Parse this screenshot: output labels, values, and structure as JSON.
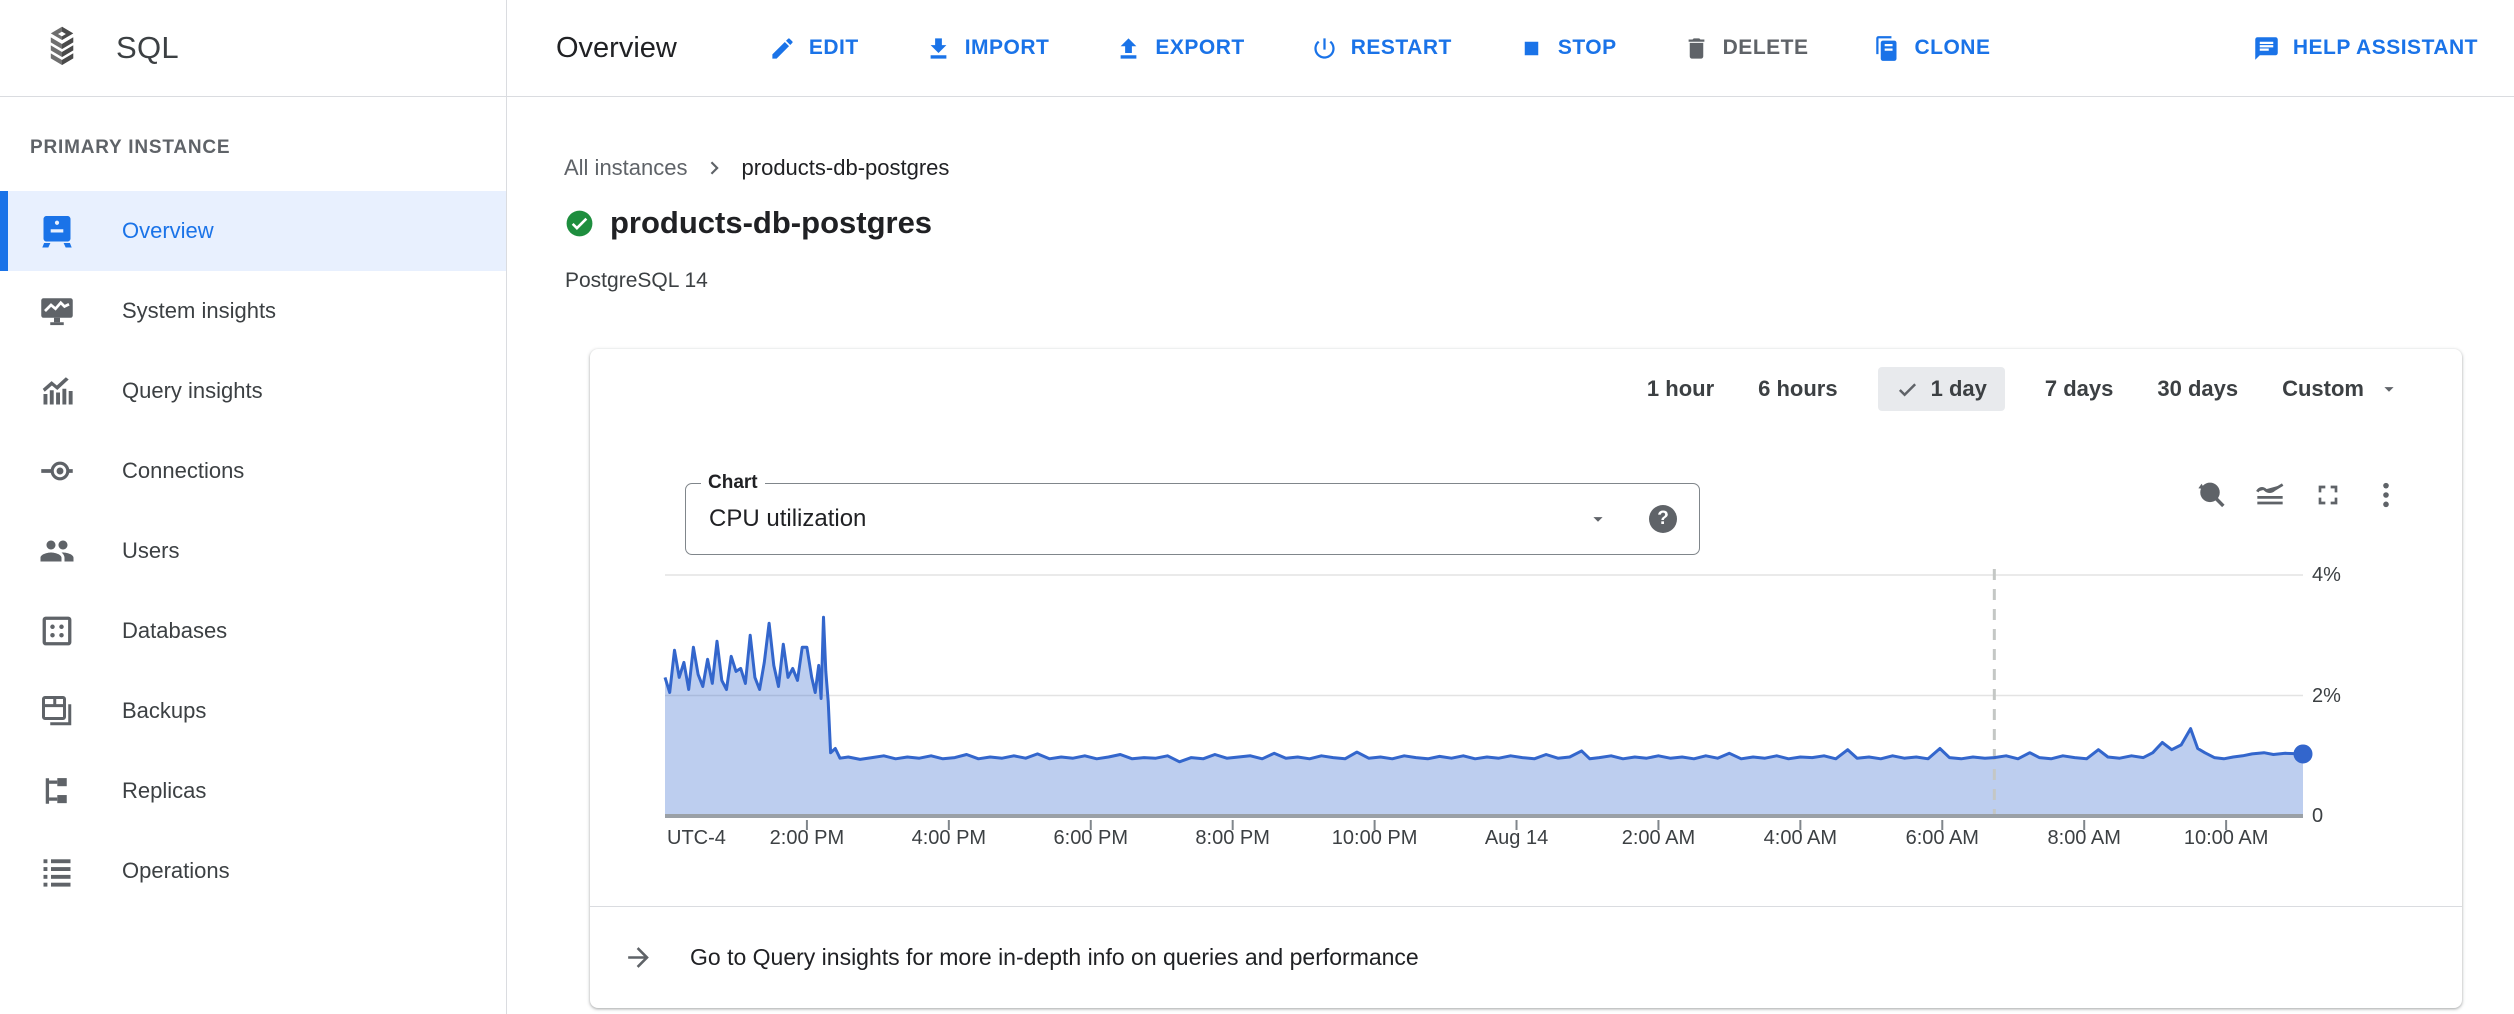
{
  "app": {
    "product_name": "SQL"
  },
  "header": {
    "page_title": "Overview",
    "actions": [
      {
        "label": "EDIT",
        "icon": "edit-pencil-icon"
      },
      {
        "label": "IMPORT",
        "icon": "import-download-icon"
      },
      {
        "label": "EXPORT",
        "icon": "export-upload-icon"
      },
      {
        "label": "RESTART",
        "icon": "restart-power-icon"
      },
      {
        "label": "STOP",
        "icon": "stop-square-icon"
      },
      {
        "label": "DELETE",
        "icon": "delete-trash-icon"
      },
      {
        "label": "CLONE",
        "icon": "clone-copy-icon"
      },
      {
        "label": "HELP ASSISTANT",
        "icon": "help-assistant-chat-icon"
      }
    ]
  },
  "sidebar": {
    "section_label": "PRIMARY INSTANCE",
    "items": [
      {
        "label": "Overview",
        "icon": "instance-overview-icon",
        "selected": true
      },
      {
        "label": "System insights",
        "icon": "system-insights-icon",
        "selected": false
      },
      {
        "label": "Query insights",
        "icon": "query-insights-icon",
        "selected": false
      },
      {
        "label": "Connections",
        "icon": "connections-icon",
        "selected": false
      },
      {
        "label": "Users",
        "icon": "users-icon",
        "selected": false
      },
      {
        "label": "Databases",
        "icon": "databases-icon",
        "selected": false
      },
      {
        "label": "Backups",
        "icon": "backups-icon",
        "selected": false
      },
      {
        "label": "Replicas",
        "icon": "replicas-icon",
        "selected": false
      },
      {
        "label": "Operations",
        "icon": "operations-icon",
        "selected": false
      }
    ]
  },
  "page": {
    "breadcrumb": {
      "parent": "All instances",
      "current": "products-db-postgres"
    },
    "instance_name": "products-db-postgres",
    "status": "running",
    "version": "PostgreSQL 14"
  },
  "card": {
    "time_ranges": [
      "1 hour",
      "6 hours",
      "1 day",
      "7 days",
      "30 days",
      "Custom"
    ],
    "selected_range": "1 day",
    "chart_select": {
      "label": "Chart",
      "value": "CPU utilization",
      "help_glyph": "?"
    },
    "footer_text": "Go to Query insights for more in-depth info on queries and performance"
  },
  "chart_data": {
    "type": "area",
    "title": "CPU utilization",
    "unit": "%",
    "legend": "none",
    "grid": true,
    "colors": {
      "line": "#3366cc",
      "area_fill": "#3366cc",
      "area_opacity": 0.32,
      "marker": "#c4c7c5",
      "axis": "#9aa0a6",
      "gridline": "#e3e3e3",
      "tick": "#80868b"
    },
    "y_axis": {
      "max": 4.33,
      "ticks": [
        {
          "value": 0,
          "label": "0"
        },
        {
          "value": 2,
          "label": "2%"
        },
        {
          "value": 4,
          "label": "4%"
        }
      ]
    },
    "x_axis": {
      "timezone_label": "UTC-4",
      "total_minutes": 1385,
      "start": "12:00 PM Aug 13",
      "end": "11:05 AM Aug 14",
      "ticks": [
        {
          "t": 120,
          "label": "2:00 PM"
        },
        {
          "t": 240,
          "label": "4:00 PM"
        },
        {
          "t": 360,
          "label": "6:00 PM"
        },
        {
          "t": 480,
          "label": "8:00 PM"
        },
        {
          "t": 600,
          "label": "10:00 PM"
        },
        {
          "t": 720,
          "label": "Aug 14"
        },
        {
          "t": 840,
          "label": "2:00 AM"
        },
        {
          "t": 960,
          "label": "4:00 AM"
        },
        {
          "t": 1080,
          "label": "6:00 AM"
        },
        {
          "t": 1200,
          "label": "8:00 AM"
        },
        {
          "t": 1320,
          "label": "10:00 AM"
        }
      ]
    },
    "now_marker_t": 1124,
    "series": [
      {
        "name": "CPU utilization",
        "points": [
          [
            0,
            2.3
          ],
          [
            4,
            2.05
          ],
          [
            8,
            2.75
          ],
          [
            12,
            2.3
          ],
          [
            16,
            2.55
          ],
          [
            20,
            2.1
          ],
          [
            24,
            2.8
          ],
          [
            28,
            2.35
          ],
          [
            32,
            2.15
          ],
          [
            36,
            2.6
          ],
          [
            40,
            2.2
          ],
          [
            44,
            2.9
          ],
          [
            48,
            2.25
          ],
          [
            52,
            2.1
          ],
          [
            56,
            2.65
          ],
          [
            60,
            2.4
          ],
          [
            64,
            2.45
          ],
          [
            68,
            2.2
          ],
          [
            72,
            3.0
          ],
          [
            76,
            2.3
          ],
          [
            80,
            2.1
          ],
          [
            84,
            2.55
          ],
          [
            88,
            3.2
          ],
          [
            92,
            2.5
          ],
          [
            96,
            2.15
          ],
          [
            100,
            2.85
          ],
          [
            104,
            2.3
          ],
          [
            108,
            2.45
          ],
          [
            112,
            2.25
          ],
          [
            116,
            2.8
          ],
          [
            120,
            2.8
          ],
          [
            124,
            2.3
          ],
          [
            127,
            2.05
          ],
          [
            130,
            2.5
          ],
          [
            132,
            1.95
          ],
          [
            134,
            3.3
          ],
          [
            136,
            2.4
          ],
          [
            138,
            1.9
          ],
          [
            140,
            1.05
          ],
          [
            144,
            1.12
          ],
          [
            148,
            0.96
          ],
          [
            155,
            0.98
          ],
          [
            165,
            0.94
          ],
          [
            175,
            0.97
          ],
          [
            185,
            1.0
          ],
          [
            195,
            0.95
          ],
          [
            205,
            0.98
          ],
          [
            215,
            0.96
          ],
          [
            225,
            1.0
          ],
          [
            235,
            0.95
          ],
          [
            245,
            0.97
          ],
          [
            255,
            1.02
          ],
          [
            265,
            0.95
          ],
          [
            275,
            0.98
          ],
          [
            285,
            0.96
          ],
          [
            295,
            1.0
          ],
          [
            305,
            0.96
          ],
          [
            315,
            1.03
          ],
          [
            325,
            0.95
          ],
          [
            335,
            0.98
          ],
          [
            345,
            0.96
          ],
          [
            355,
            1.0
          ],
          [
            365,
            0.95
          ],
          [
            375,
            0.98
          ],
          [
            385,
            1.02
          ],
          [
            395,
            0.95
          ],
          [
            405,
            0.97
          ],
          [
            415,
            0.96
          ],
          [
            425,
            1.0
          ],
          [
            435,
            0.9
          ],
          [
            445,
            0.97
          ],
          [
            455,
            0.95
          ],
          [
            465,
            1.02
          ],
          [
            475,
            0.96
          ],
          [
            485,
            0.98
          ],
          [
            495,
            1.0
          ],
          [
            505,
            0.95
          ],
          [
            515,
            1.04
          ],
          [
            525,
            0.96
          ],
          [
            535,
            0.98
          ],
          [
            545,
            0.95
          ],
          [
            555,
            1.0
          ],
          [
            565,
            0.97
          ],
          [
            575,
            0.95
          ],
          [
            585,
            1.06
          ],
          [
            595,
            0.96
          ],
          [
            605,
            0.98
          ],
          [
            615,
            0.95
          ],
          [
            625,
            1.0
          ],
          [
            635,
            0.97
          ],
          [
            645,
            0.95
          ],
          [
            655,
            0.99
          ],
          [
            665,
            0.96
          ],
          [
            675,
            1.0
          ],
          [
            685,
            0.95
          ],
          [
            695,
            0.98
          ],
          [
            705,
            0.96
          ],
          [
            715,
            1.0
          ],
          [
            725,
            0.97
          ],
          [
            735,
            0.95
          ],
          [
            745,
            1.02
          ],
          [
            755,
            0.96
          ],
          [
            765,
            0.98
          ],
          [
            775,
            1.08
          ],
          [
            782,
            0.95
          ],
          [
            790,
            0.97
          ],
          [
            800,
            1.0
          ],
          [
            810,
            0.95
          ],
          [
            820,
            0.98
          ],
          [
            830,
            0.96
          ],
          [
            840,
            1.0
          ],
          [
            850,
            0.96
          ],
          [
            860,
            0.98
          ],
          [
            870,
            0.95
          ],
          [
            880,
            1.0
          ],
          [
            890,
            0.96
          ],
          [
            900,
            1.04
          ],
          [
            910,
            0.95
          ],
          [
            920,
            0.98
          ],
          [
            930,
            0.96
          ],
          [
            940,
            1.0
          ],
          [
            950,
            0.95
          ],
          [
            960,
            0.98
          ],
          [
            970,
            0.97
          ],
          [
            980,
            1.0
          ],
          [
            990,
            0.95
          ],
          [
            1000,
            1.1
          ],
          [
            1008,
            0.96
          ],
          [
            1018,
            0.98
          ],
          [
            1028,
            0.95
          ],
          [
            1038,
            1.0
          ],
          [
            1048,
            0.96
          ],
          [
            1058,
            0.98
          ],
          [
            1068,
            0.95
          ],
          [
            1078,
            1.12
          ],
          [
            1086,
            0.97
          ],
          [
            1096,
            0.95
          ],
          [
            1106,
            0.98
          ],
          [
            1116,
            0.96
          ],
          [
            1124,
            0.97
          ],
          [
            1134,
            1.0
          ],
          [
            1144,
            0.95
          ],
          [
            1154,
            1.05
          ],
          [
            1162,
            0.97
          ],
          [
            1172,
            0.95
          ],
          [
            1182,
            1.0
          ],
          [
            1192,
            0.97
          ],
          [
            1202,
            0.95
          ],
          [
            1212,
            1.1
          ],
          [
            1220,
            0.98
          ],
          [
            1230,
            0.96
          ],
          [
            1240,
            1.0
          ],
          [
            1250,
            0.97
          ],
          [
            1258,
            1.05
          ],
          [
            1266,
            1.22
          ],
          [
            1274,
            1.1
          ],
          [
            1282,
            1.18
          ],
          [
            1290,
            1.45
          ],
          [
            1296,
            1.12
          ],
          [
            1302,
            1.05
          ],
          [
            1310,
            0.97
          ],
          [
            1318,
            0.95
          ],
          [
            1326,
            0.98
          ],
          [
            1334,
            1.0
          ],
          [
            1342,
            1.03
          ],
          [
            1352,
            1.05
          ],
          [
            1360,
            1.02
          ],
          [
            1370,
            1.04
          ],
          [
            1385,
            1.03
          ]
        ]
      }
    ]
  }
}
